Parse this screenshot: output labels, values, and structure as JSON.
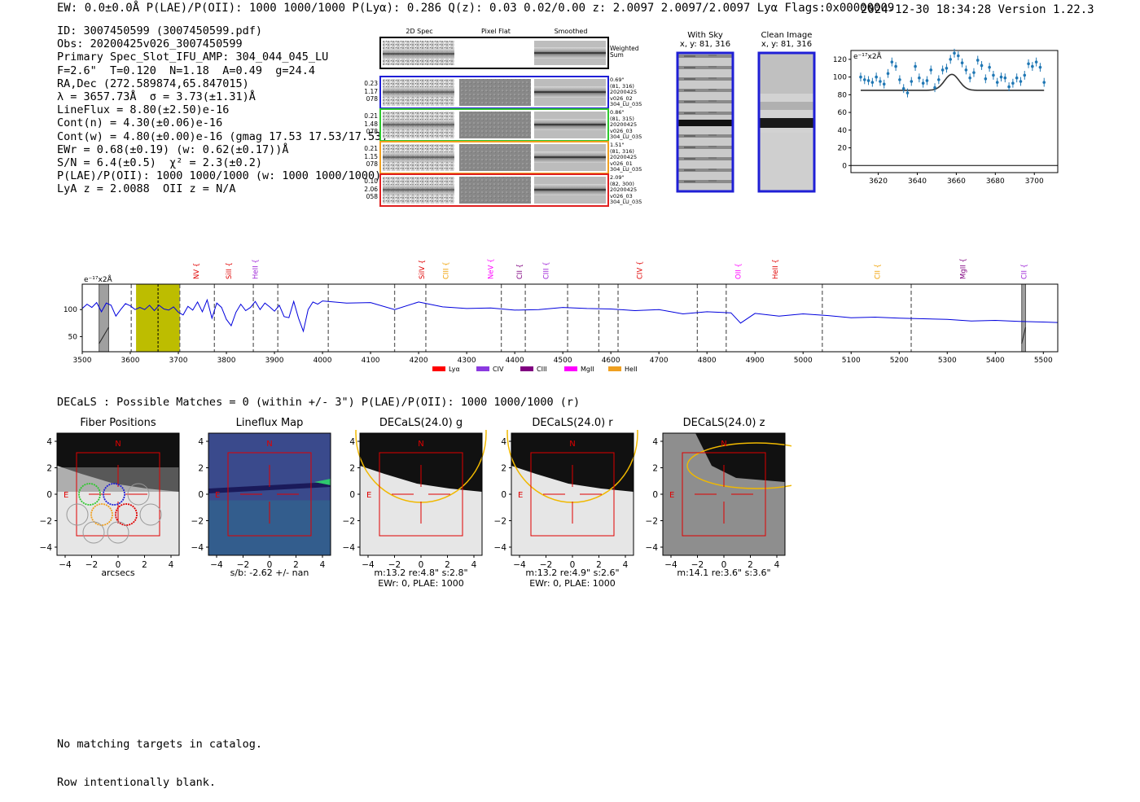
{
  "header": {
    "top_line": "EW: 0.0±0.0Å  P(LAE)/P(OII): 1000 1000/1000  P(Lyα): 0.286  Q(z): 0.03 0.02/0.00  z: 2.0097 2.0097/2.0097 Lyα  Flags:0x00000009",
    "timestamp_version": "2024-12-30 18:34:28  Version 1.22.3"
  },
  "info_lines": [
    "ID: 3007450599 (3007450599.pdf)",
    "Obs: 20200425v026_3007450599",
    "Primary Spec_Slot_IFU_AMP: 304_044_045_LU",
    "F=2.6\"  T=0.120  N=1.18  A=0.49  g=24.4",
    "RA,Dec (272.589874,65.847015)",
    "λ = 3657.73Å  σ = 3.73(±1.31)Å",
    "LineFlux = 8.80(±2.50)e-16",
    "Cont(n) = 4.30(±0.06)e-16",
    "Cont(w) = 4.80(±0.00)e-16 (gmag 17.53 17.53/17.53)",
    "EWr = 0.68(±0.19) (w: 0.62(±0.17))Å",
    "S/N = 6.4(±0.5)  χ² = 2.3(±0.2)",
    "P(LAE)/P(OII): 1000 1000/1000 (w: 1000 1000/1000)",
    "LyA z = 2.0088  OII z = N/A"
  ],
  "fiber_panels": {
    "column_titles": [
      "2D Spec",
      "Pixel Flat",
      "Smoothed"
    ],
    "sum_label": "Weighted\nSum",
    "rows": [
      {
        "stats": "0.23\n1.17\n078",
        "right": "0.69\"\n(81, 316)\n20200425\nv026_02\n304_LU_035",
        "color": "#1f1fd6"
      },
      {
        "stats": "0.21\n1.48\n078",
        "right": "0.86\"\n(81, 315)\n20200425\nv026_03\n304_LU_035",
        "color": "#2ec82e"
      },
      {
        "stats": "0.21\n1.15\n078",
        "right": "1.51\"\n(81, 316)\n20200425\nv026_01\n304_LU_035",
        "color": "#f0a020"
      },
      {
        "stats": "0.10\n2.06\n058",
        "right": "2.09\"\n(82, 300)\n20200425\nv026_03\n304_LU_035",
        "color": "#e02020"
      }
    ]
  },
  "cutouts": {
    "with_sky": {
      "title": "With Sky",
      "coords": "x, y: 81, 316"
    },
    "clean": {
      "title": "Clean Image",
      "coords": "x, y: 81, 316"
    }
  },
  "decals": {
    "line": "DECaLS : Possible Matches = 0 (within +/- 3\")  P(LAE)/P(OII): 1000 1000/1000 (r)",
    "panels": [
      {
        "title": "Fiber Positions",
        "caption1": "arcsecs",
        "caption2": ""
      },
      {
        "title": "Lineflux Map",
        "caption1": "s/b: -2.62 +/- nan",
        "caption2": ""
      },
      {
        "title": "DECaLS(24.0) g",
        "caption1": "m:13.2  re:4.8\"  s:2.8\"",
        "caption2": "EWr: 0, PLAE: 1000"
      },
      {
        "title": "DECaLS(24.0) r",
        "caption1": "m:13.2  re:4.9\"  s:2.6\"",
        "caption2": "EWr: 0, PLAE: 1000"
      },
      {
        "title": "DECaLS(24.0) z",
        "caption1": "m:14.1  re:3.6\"  s:3.6\"",
        "caption2": ""
      }
    ],
    "axis_ticks": [
      "4",
      "2",
      "0",
      "−2",
      "−4"
    ],
    "x_ticks": [
      "−4",
      "−2",
      "0",
      "2",
      "4"
    ],
    "compass_n": "N",
    "compass_e": "E"
  },
  "footer": [
    "No matching targets in catalog.",
    "Row intentionally blank."
  ],
  "colors": {
    "spectrum": "#0000dd",
    "fit_points": "#1f77b4",
    "lya_band": "#bdbd00",
    "fiber_blue": "#1f1fd6",
    "fiber_green": "#2ec82e",
    "fiber_orange": "#f0a020",
    "fiber_red": "#e02020"
  },
  "chart_data": [
    {
      "type": "scatter",
      "ylabel": "e⁻¹⁷x2Å",
      "xlim": [
        3606,
        3712
      ],
      "ylim": [
        -8,
        130
      ],
      "x_ticks": [
        3620,
        3640,
        3660,
        3680,
        3700
      ],
      "y_ticks": [
        0,
        20,
        40,
        60,
        80,
        100,
        120
      ],
      "points": [
        {
          "x": 3611,
          "y": 100
        },
        {
          "x": 3613,
          "y": 97
        },
        {
          "x": 3615,
          "y": 96
        },
        {
          "x": 3617,
          "y": 94
        },
        {
          "x": 3619,
          "y": 100
        },
        {
          "x": 3621,
          "y": 95
        },
        {
          "x": 3623,
          "y": 92
        },
        {
          "x": 3625,
          "y": 104
        },
        {
          "x": 3627,
          "y": 117
        },
        {
          "x": 3629,
          "y": 112
        },
        {
          "x": 3631,
          "y": 97
        },
        {
          "x": 3633,
          "y": 87
        },
        {
          "x": 3635,
          "y": 82
        },
        {
          "x": 3637,
          "y": 95
        },
        {
          "x": 3639,
          "y": 112
        },
        {
          "x": 3641,
          "y": 99
        },
        {
          "x": 3643,
          "y": 93
        },
        {
          "x": 3645,
          "y": 96
        },
        {
          "x": 3647,
          "y": 108
        },
        {
          "x": 3649,
          "y": 88
        },
        {
          "x": 3651,
          "y": 97
        },
        {
          "x": 3653,
          "y": 108
        },
        {
          "x": 3655,
          "y": 110
        },
        {
          "x": 3657,
          "y": 120
        },
        {
          "x": 3659,
          "y": 127
        },
        {
          "x": 3661,
          "y": 124
        },
        {
          "x": 3663,
          "y": 116
        },
        {
          "x": 3665,
          "y": 108
        },
        {
          "x": 3667,
          "y": 99
        },
        {
          "x": 3669,
          "y": 105
        },
        {
          "x": 3671,
          "y": 119
        },
        {
          "x": 3673,
          "y": 113
        },
        {
          "x": 3675,
          "y": 98
        },
        {
          "x": 3677,
          "y": 111
        },
        {
          "x": 3679,
          "y": 102
        },
        {
          "x": 3681,
          "y": 94
        },
        {
          "x": 3683,
          "y": 100
        },
        {
          "x": 3685,
          "y": 99
        },
        {
          "x": 3687,
          "y": 89
        },
        {
          "x": 3689,
          "y": 93
        },
        {
          "x": 3691,
          "y": 99
        },
        {
          "x": 3693,
          "y": 95
        },
        {
          "x": 3695,
          "y": 102
        },
        {
          "x": 3697,
          "y": 115
        },
        {
          "x": 3699,
          "y": 112
        },
        {
          "x": 3701,
          "y": 117
        },
        {
          "x": 3703,
          "y": 111
        },
        {
          "x": 3705,
          "y": 94
        }
      ],
      "fit": {
        "baseline": 85,
        "center": 3657.73,
        "sigma": 3.73,
        "amplitude": 18,
        "x_range": [
          3611,
          3705
        ]
      }
    },
    {
      "type": "line",
      "ylabel": "e⁻¹⁷x2Å",
      "xlim": [
        3500,
        5530
      ],
      "ylim": [
        22,
        147
      ],
      "x_ticks": [
        3500,
        3600,
        3700,
        3800,
        3900,
        4000,
        4100,
        4200,
        4300,
        4400,
        4500,
        4600,
        4700,
        4800,
        4900,
        5000,
        5100,
        5200,
        5300,
        5400,
        5500
      ],
      "y_ticks": [
        50,
        100
      ],
      "lya_band": [
        3612,
        3703
      ],
      "lya_center": 3657.73,
      "masked": [
        [
          3535,
          3555
        ],
        [
          5455,
          5463
        ]
      ],
      "dashed_lines": [
        3602,
        3703,
        3775,
        3856,
        3907,
        4012,
        4150,
        4215,
        4372,
        4422,
        4510,
        4575,
        4615,
        4780,
        4840,
        5040,
        5225
      ],
      "emission_labels": [
        {
          "label": "NV",
          "x": 3737,
          "color": "#e00000"
        },
        {
          "label": "SiII",
          "x": 3805,
          "color": "#e00000"
        },
        {
          "label": "HeII",
          "x": 3860,
          "color": "#9b1fd6"
        },
        {
          "label": "SiIV",
          "x": 4207,
          "color": "#e00000"
        },
        {
          "label": "CIII",
          "x": 4257,
          "color": "#f0a000"
        },
        {
          "label": "NeV",
          "x": 4350,
          "color": "#ff00ff"
        },
        {
          "label": "CII",
          "x": 4410,
          "color": "#800080"
        },
        {
          "label": "CIII",
          "x": 4465,
          "color": "#9b1fd6"
        },
        {
          "label": "CIV",
          "x": 4660,
          "color": "#e00000"
        },
        {
          "label": "OII",
          "x": 4865,
          "color": "#ff00ff"
        },
        {
          "label": "HeII",
          "x": 4942,
          "color": "#e00000"
        },
        {
          "label": "CII",
          "x": 5155,
          "color": "#f0a000"
        },
        {
          "label": "MgII",
          "x": 5333,
          "color": "#800080"
        },
        {
          "label": "CII",
          "x": 5460,
          "color": "#9b1fd6"
        }
      ],
      "legend": [
        {
          "name": "Lyα",
          "color": "#ff0000"
        },
        {
          "name": "CIV",
          "color": "#8b3ae0"
        },
        {
          "name": "CIII",
          "color": "#800080"
        },
        {
          "name": "MgII",
          "color": "#ff00ff"
        },
        {
          "name": "HeII",
          "color": "#f0a020"
        }
      ],
      "x": [
        3500,
        3510,
        3520,
        3530,
        3540,
        3550,
        3560,
        3570,
        3580,
        3590,
        3600,
        3610,
        3620,
        3630,
        3640,
        3650,
        3660,
        3670,
        3680,
        3690,
        3700,
        3710,
        3720,
        3730,
        3740,
        3750,
        3760,
        3770,
        3780,
        3790,
        3800,
        3810,
        3820,
        3830,
        3840,
        3850,
        3860,
        3870,
        3880,
        3890,
        3900,
        3910,
        3920,
        3930,
        3940,
        3950,
        3960,
        3970,
        3980,
        3990,
        4000,
        4050,
        4100,
        4150,
        4200,
        4250,
        4300,
        4350,
        4400,
        4450,
        4500,
        4550,
        4600,
        4650,
        4700,
        4750,
        4800,
        4850,
        4870,
        4900,
        4950,
        5000,
        5050,
        5100,
        5150,
        5200,
        5250,
        5300,
        5350,
        5400,
        5450,
        5500,
        5530
      ],
      "y": [
        102,
        110,
        104,
        113,
        96,
        112,
        108,
        88,
        100,
        111,
        107,
        100,
        104,
        100,
        108,
        98,
        108,
        101,
        99,
        105,
        95,
        90,
        106,
        99,
        114,
        96,
        118,
        84,
        112,
        104,
        82,
        70,
        95,
        110,
        98,
        104,
        115,
        100,
        112,
        105,
        97,
        108,
        87,
        85,
        115,
        84,
        60,
        100,
        114,
        110,
        116,
        112,
        113,
        100,
        114,
        105,
        102,
        103,
        99,
        100,
        104,
        102,
        101,
        98,
        100,
        92,
        96,
        94,
        75,
        93,
        88,
        92,
        89,
        85,
        86,
        84,
        83,
        82,
        79,
        80,
        78,
        77,
        76
      ]
    }
  ]
}
